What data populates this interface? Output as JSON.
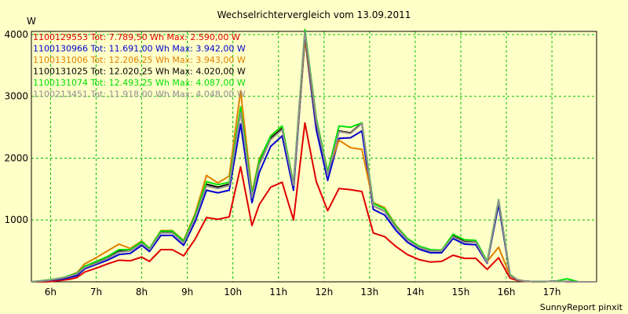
{
  "chart_data": {
    "type": "line",
    "title": "Wechselrichtervergleich vom 13.09.2011",
    "ylabel": "W",
    "xlabel": "",
    "credit": "SunnyReport pinxit",
    "ylim": [
      0,
      4050
    ],
    "xlim": [
      5.58,
      17.98
    ],
    "yticks": [
      1000,
      2000,
      3000,
      4000
    ],
    "xtick_values": [
      6,
      7,
      8,
      9,
      10,
      11,
      12,
      13,
      14,
      15,
      16,
      17
    ],
    "xtick_labels": [
      "6h",
      "7h",
      "8h",
      "9h",
      "10h",
      "11h",
      "12h",
      "13h",
      "14h",
      "15h",
      "16h",
      "17h"
    ],
    "grid": true,
    "legend_position": "top-left",
    "background": "#ffffc8",
    "grid_color": "#00c000",
    "x": [
      5.58,
      5.83,
      6.0,
      6.25,
      6.42,
      6.58,
      6.75,
      7.0,
      7.25,
      7.5,
      7.75,
      8.0,
      8.17,
      8.42,
      8.67,
      8.92,
      9.17,
      9.42,
      9.67,
      9.92,
      10.17,
      10.42,
      10.58,
      10.83,
      11.08,
      11.33,
      11.58,
      11.83,
      12.08,
      12.33,
      12.58,
      12.83,
      13.08,
      13.33,
      13.58,
      13.83,
      14.08,
      14.33,
      14.58,
      14.83,
      15.08,
      15.33,
      15.58,
      15.83,
      16.08,
      16.25,
      16.42,
      16.58,
      16.83,
      17.08,
      17.33,
      17.58,
      17.83,
      17.98
    ],
    "series": [
      {
        "name": "1100129553",
        "legend": "1100129553 Tot: 7.789,50 Wh Max: 2.590,00 W",
        "color": "#e00000",
        "values": [
          0,
          0,
          5,
          25,
          40,
          70,
          160,
          220,
          290,
          350,
          340,
          400,
          330,
          520,
          520,
          420,
          690,
          1040,
          1010,
          1050,
          1860,
          910,
          1250,
          1530,
          1610,
          1000,
          2570,
          1620,
          1150,
          1510,
          1490,
          1460,
          790,
          730,
          570,
          440,
          360,
          320,
          330,
          430,
          380,
          380,
          200,
          390,
          60,
          20,
          5,
          5,
          5,
          10,
          5,
          0,
          0,
          0
        ]
      },
      {
        "name": "1100130966",
        "legend": "1100130966 Tot: 11.691,00 Wh Max: 3.942,00 W",
        "color": "#0000d0",
        "values": [
          0,
          10,
          25,
          45,
          70,
          100,
          210,
          280,
          350,
          440,
          460,
          590,
          490,
          750,
          750,
          590,
          970,
          1480,
          1440,
          1480,
          2550,
          1280,
          1770,
          2190,
          2360,
          1480,
          3930,
          2460,
          1640,
          2320,
          2330,
          2440,
          1170,
          1080,
          830,
          640,
          530,
          470,
          470,
          700,
          610,
          600,
          300,
          1250,
          100,
          30,
          10,
          5,
          5,
          10,
          5,
          0,
          0,
          0
        ]
      },
      {
        "name": "1100131006",
        "legend": "1100131006 Tot: 12.206,25 Wh Max: 3.943,00 W",
        "color": "#e08000",
        "values": [
          0,
          10,
          30,
          60,
          100,
          150,
          290,
          390,
          500,
          610,
          540,
          660,
          540,
          830,
          830,
          670,
          1100,
          1720,
          1600,
          1710,
          3090,
          1440,
          1990,
          2330,
          2490,
          1560,
          3930,
          2580,
          1780,
          2290,
          2170,
          2140,
          1280,
          1200,
          910,
          700,
          580,
          510,
          510,
          760,
          650,
          650,
          330,
          560,
          100,
          30,
          10,
          5,
          5,
          10,
          5,
          0,
          0,
          0
        ]
      },
      {
        "name": "1100131025",
        "legend": "1100131025 Tot: 12.020,25 Wh Max: 4.020,00 W",
        "color": "#000000",
        "values": [
          0,
          15,
          30,
          60,
          90,
          130,
          230,
          310,
          390,
          500,
          510,
          640,
          530,
          800,
          800,
          640,
          1040,
          1580,
          1530,
          1580,
          2770,
          1370,
          1910,
          2320,
          2480,
          1570,
          4010,
          2600,
          1740,
          2440,
          2410,
          2570,
          1230,
          1140,
          880,
          680,
          560,
          500,
          500,
          740,
          650,
          640,
          310,
          1310,
          110,
          30,
          10,
          5,
          5,
          10,
          5,
          0,
          0,
          0
        ]
      },
      {
        "name": "1100131074",
        "legend": "1100131074 Tot: 12.493,25 Wh Max: 4.087,00 W",
        "color": "#00e000",
        "values": [
          0,
          20,
          35,
          65,
          100,
          140,
          250,
          330,
          410,
          520,
          520,
          650,
          540,
          820,
          820,
          660,
          1070,
          1620,
          1570,
          1610,
          2830,
          1410,
          1960,
          2360,
          2520,
          1590,
          4080,
          2650,
          1780,
          2520,
          2500,
          2570,
          1270,
          1180,
          900,
          700,
          580,
          520,
          510,
          770,
          680,
          670,
          330,
          1330,
          120,
          30,
          10,
          5,
          5,
          10,
          50,
          0,
          0,
          0
        ]
      },
      {
        "name": "1100213451",
        "legend": "1100213451 Tot: 11.918,00 Wh Max: 4.048,00 W",
        "color": "#909090",
        "values": [
          0,
          15,
          30,
          60,
          90,
          130,
          230,
          300,
          380,
          480,
          500,
          620,
          520,
          790,
          790,
          630,
          1030,
          1550,
          1510,
          1560,
          2740,
          1360,
          1890,
          2300,
          2460,
          1560,
          4040,
          2610,
          1730,
          2430,
          2400,
          2560,
          1230,
          1140,
          880,
          680,
          560,
          500,
          500,
          730,
          640,
          640,
          310,
          1320,
          110,
          30,
          10,
          5,
          5,
          10,
          5,
          0,
          0,
          0
        ]
      }
    ]
  }
}
